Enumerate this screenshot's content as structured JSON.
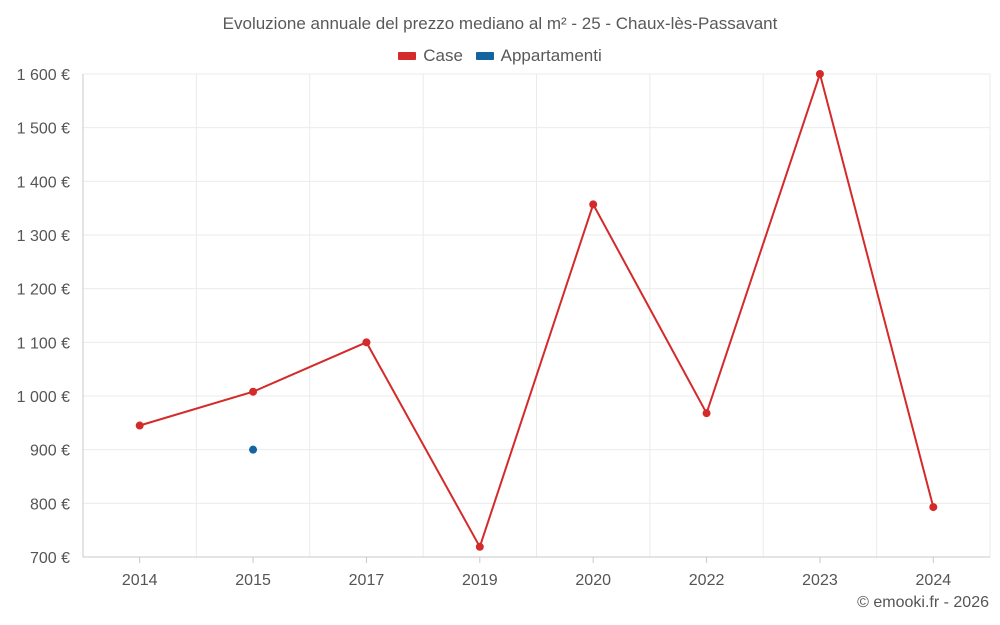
{
  "chart_data": {
    "type": "line",
    "title": "Evoluzione annuale del prezzo mediano al m² - 25 - Chaux-lès-Passavant",
    "categories": [
      "2014",
      "2015",
      "2017",
      "2019",
      "2020",
      "2022",
      "2023",
      "2024"
    ],
    "series": [
      {
        "name": "Case",
        "color": "#d42a2a",
        "values": [
          945,
          1008,
          1100,
          719,
          1357,
          968,
          1600,
          793
        ]
      },
      {
        "name": "Appartamenti",
        "color": "#1464a0",
        "values": [
          null,
          900,
          null,
          null,
          null,
          null,
          null,
          null
        ]
      }
    ],
    "ylim": [
      700,
      1600
    ],
    "yticks": [
      700,
      800,
      900,
      1000,
      1100,
      1200,
      1300,
      1400,
      1500,
      1600
    ],
    "ytick_labels": [
      "700 €",
      "800 €",
      "900 €",
      "1 000 €",
      "1 100 €",
      "1 200 €",
      "1 300 €",
      "1 400 €",
      "1 500 €",
      "1 600 €"
    ],
    "xlabel": "",
    "ylabel": "",
    "grid": true,
    "legend_position": "top-center"
  },
  "credit": "© emooki.fr - 2026"
}
